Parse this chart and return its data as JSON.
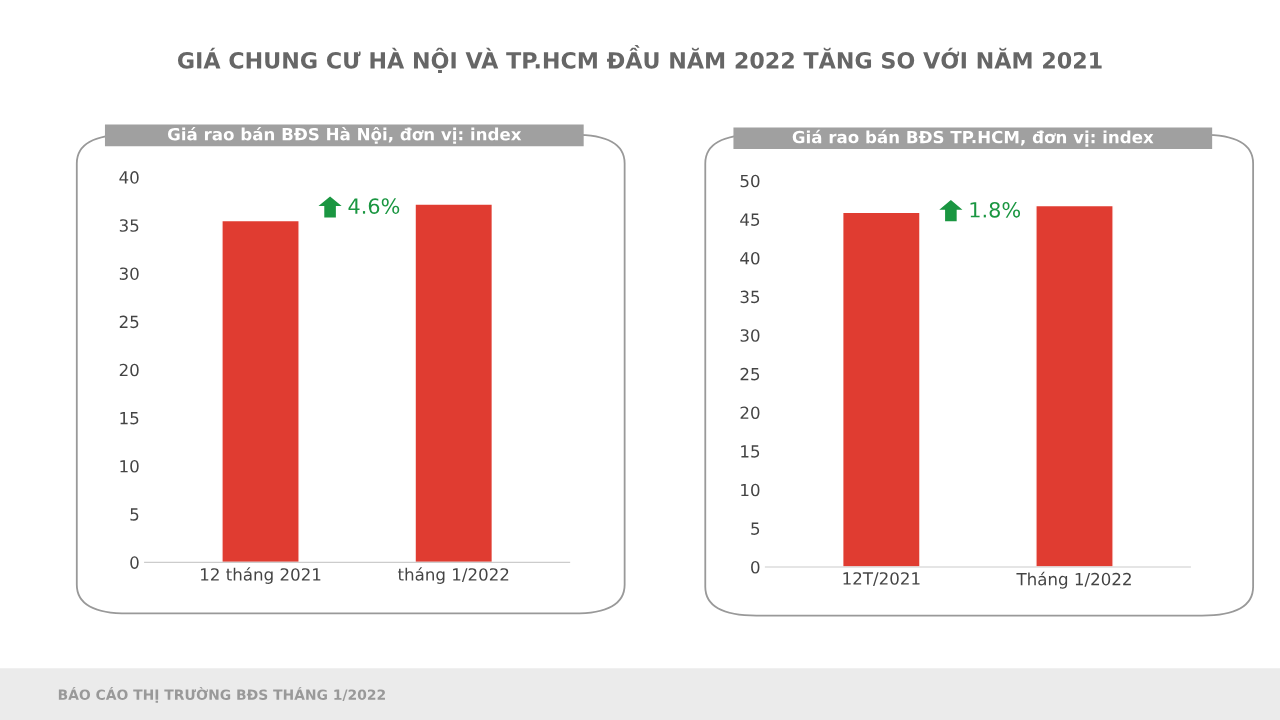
{
  "chart_data": [
    {
      "type": "bar",
      "title": "GIÁ CHUNG CƯ HÀ NỘI VÀ TP.HCM ĐẦU NĂM 2022 TĂNG SO VỚI NĂM 2021",
      "subtitle": "Giá rao bán BĐS Hà Nội, đơn vị: index",
      "categories": [
        "12 tháng 2021",
        "tháng 1/2022"
      ],
      "values": [
        35.5,
        37.2
      ],
      "color": "#e03c31",
      "ylim": [
        0,
        40
      ],
      "yticks": [
        0,
        5,
        10,
        15,
        20,
        25,
        30,
        35,
        40
      ],
      "grid": false,
      "annotations": [
        "4.6%",
        "BÁO CÁO THỊ TRƯỜNG BĐS THÁNG 1/2022"
      ]
    },
    {
      "type": "bar",
      "subtitle": "Giá rao bán BĐS TP.HCM, đơn vị: index",
      "categories": [
        "12T/2021",
        "Tháng 1/2022"
      ],
      "values": [
        45.9,
        46.8
      ],
      "color": "#e03c31",
      "ylim": [
        0,
        50
      ],
      "yticks": [
        0,
        5,
        10,
        15,
        20,
        25,
        30,
        35,
        40,
        45,
        50
      ],
      "grid": false,
      "annotations": [
        "1.8%"
      ]
    }
  ]
}
